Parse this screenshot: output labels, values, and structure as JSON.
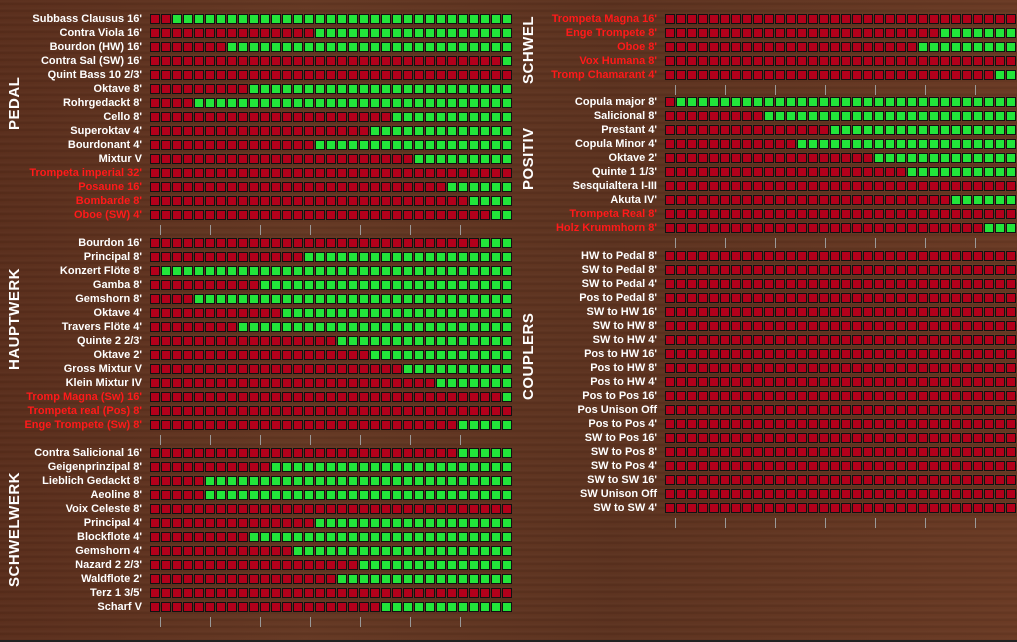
{
  "colors": {
    "off": "#b3001b",
    "on": "#22e53a",
    "label": "#ffffff",
    "alert_label": "#ff1a1a"
  },
  "sections": [
    {
      "id": "pedal",
      "label": "PEDAL",
      "stops": [
        {
          "name": "Subbass Clausus 16'",
          "level": 0.94,
          "red": false
        },
        {
          "name": "Contra Viola 16'",
          "level": 0.55,
          "red": false
        },
        {
          "name": "Bourdon (HW) 16'",
          "level": 0.79,
          "red": false
        },
        {
          "name": "Contra Sal (SW) 16'",
          "level": 0.03,
          "red": false
        },
        {
          "name": "Quint Bass 10 2/3'",
          "level": 0.0,
          "red": false
        },
        {
          "name": "Oktave 8'",
          "level": 0.73,
          "red": false
        },
        {
          "name": "Rohrgedackt 8'",
          "level": 0.88,
          "red": false
        },
        {
          "name": "Cello 8'",
          "level": 0.33,
          "red": false
        },
        {
          "name": "Superoktav 4'",
          "level": 0.39,
          "red": false
        },
        {
          "name": "Bourdonant 4'",
          "level": 0.55,
          "red": false
        },
        {
          "name": "Mixtur V",
          "level": 0.27,
          "red": false
        },
        {
          "name": "Trompeta imperial 32'",
          "level": 0.0,
          "red": true
        },
        {
          "name": "Posaune 16'",
          "level": 0.18,
          "red": true
        },
        {
          "name": "Bombarde 8'",
          "level": 0.12,
          "red": true
        },
        {
          "name": "Oboe (SW) 4'",
          "level": 0.06,
          "red": true
        }
      ]
    },
    {
      "id": "hauptwerk",
      "label": "HAUPTWERK",
      "stops": [
        {
          "name": "Bourdon 16'",
          "level": 0.09,
          "red": false
        },
        {
          "name": "Principal 8'",
          "level": 0.58,
          "red": false
        },
        {
          "name": "Konzert Flöte 8'",
          "level": 0.97,
          "red": false
        },
        {
          "name": "Gamba 8'",
          "level": 0.7,
          "red": false
        },
        {
          "name": "Gemshorn 8'",
          "level": 0.88,
          "red": false
        },
        {
          "name": "Oktave 4'",
          "level": 0.64,
          "red": false
        },
        {
          "name": "Travers Flöte 4'",
          "level": 0.76,
          "red": false
        },
        {
          "name": "Quinte 2 2/3'",
          "level": 0.48,
          "red": false
        },
        {
          "name": "Oktave 2'",
          "level": 0.39,
          "red": false
        },
        {
          "name": "Gross Mixtur V",
          "level": 0.3,
          "red": false
        },
        {
          "name": "Klein Mixtur IV",
          "level": 0.21,
          "red": false
        },
        {
          "name": "Tromp Magna (Sw) 16'",
          "level": 0.03,
          "red": true
        },
        {
          "name": "Trompeta real (Pos) 8'",
          "level": 0.0,
          "red": true
        },
        {
          "name": "Enge Trompete (Sw) 8'",
          "level": 0.15,
          "red": true
        }
      ]
    },
    {
      "id": "schwelwerk",
      "label": "SCHWELWERK",
      "stops": [
        {
          "name": "Contra Salicional 16'",
          "level": 0.15,
          "red": false
        },
        {
          "name": "Geigenprinzipal 8'",
          "level": 0.67,
          "red": false
        },
        {
          "name": "Lieblich Gedackt 8'",
          "level": 0.85,
          "red": false
        },
        {
          "name": "Aeoline 8'",
          "level": 0.85,
          "red": false
        },
        {
          "name": "Voix Celeste 8'",
          "level": 0.0,
          "red": false
        },
        {
          "name": "Principal 4'",
          "level": 0.55,
          "red": false
        },
        {
          "name": "Blockflote 4'",
          "level": 0.73,
          "red": false
        },
        {
          "name": "Gemshorn 4'",
          "level": 0.61,
          "red": false
        },
        {
          "name": "Nazard 2 2/3'",
          "level": 0.42,
          "red": false
        },
        {
          "name": "Waldflote 2'",
          "level": 0.48,
          "red": false
        },
        {
          "name": "Terz 1 3/5'",
          "level": 0.0,
          "red": false
        },
        {
          "name": "Scharf V",
          "level": 0.36,
          "red": false
        }
      ]
    },
    {
      "id": "schwel",
      "label": "SCHWEL",
      "stops": [
        {
          "name": "Trompeta Magna 16'",
          "level": 0.03,
          "red": true
        },
        {
          "name": "Enge Trompete 8'",
          "level": 0.24,
          "red": true
        },
        {
          "name": "Oboe 8'",
          "level": 0.3,
          "red": true
        },
        {
          "name": "Vox Humana 8'",
          "level": 0.0,
          "red": true
        },
        {
          "name": "Tromp Chamarant 4'",
          "level": 0.09,
          "red": true
        }
      ]
    },
    {
      "id": "positiv",
      "label": "POSITIV",
      "stops": [
        {
          "name": "Copula major 8'",
          "level": 0.97,
          "red": false
        },
        {
          "name": "Salicional 8'",
          "level": 0.73,
          "red": false
        },
        {
          "name": "Prestant 4'",
          "level": 0.55,
          "red": false
        },
        {
          "name": "Copula Minor 4'",
          "level": 0.64,
          "red": false
        },
        {
          "name": "Oktave 2'",
          "level": 0.42,
          "red": false
        },
        {
          "name": "Quinte 1 1/3'",
          "level": 0.33,
          "red": false
        },
        {
          "name": "Sesquialtera I-III",
          "level": 0.0,
          "red": false
        },
        {
          "name": "Akuta IV'",
          "level": 0.21,
          "red": false
        },
        {
          "name": "Trompeta Real 8'",
          "level": 0.0,
          "red": true
        },
        {
          "name": "Holz Krummhorn 8'",
          "level": 0.12,
          "red": true
        }
      ]
    },
    {
      "id": "couplers",
      "label": "COUPLERS",
      "stops": [
        {
          "name": "HW to Pedal 8'",
          "level": 0.0,
          "red": false
        },
        {
          "name": "SW to Pedal 8'",
          "level": 0.0,
          "red": false
        },
        {
          "name": "SW to Pedal 4'",
          "level": 0.0,
          "red": false
        },
        {
          "name": "Pos to Pedal 8'",
          "level": 0.0,
          "red": false
        },
        {
          "name": "SW to HW 16'",
          "level": 0.0,
          "red": false
        },
        {
          "name": "SW to HW 8'",
          "level": 0.0,
          "red": false
        },
        {
          "name": "SW to HW 4'",
          "level": 0.0,
          "red": false
        },
        {
          "name": "Pos to HW 16'",
          "level": 0.0,
          "red": false
        },
        {
          "name": "Pos to HW 8'",
          "level": 0.0,
          "red": false
        },
        {
          "name": "Pos to HW 4'",
          "level": 0.0,
          "red": false
        },
        {
          "name": "Pos to Pos 16'",
          "level": 0.0,
          "red": false
        },
        {
          "name": "Pos Unison Off",
          "level": 0.0,
          "red": false
        },
        {
          "name": "Pos to Pos 4'",
          "level": 0.0,
          "red": false
        },
        {
          "name": "SW to Pos 16'",
          "level": 0.0,
          "red": false
        },
        {
          "name": "SW to Pos 8'",
          "level": 0.0,
          "red": false
        },
        {
          "name": "SW to Pos 4'",
          "level": 0.0,
          "red": false
        },
        {
          "name": "SW to SW 16'",
          "level": 0.0,
          "red": false
        },
        {
          "name": "SW Unison Off",
          "level": 0.0,
          "red": false
        },
        {
          "name": "SW to SW 4'",
          "level": 0.0,
          "red": false
        }
      ]
    }
  ]
}
